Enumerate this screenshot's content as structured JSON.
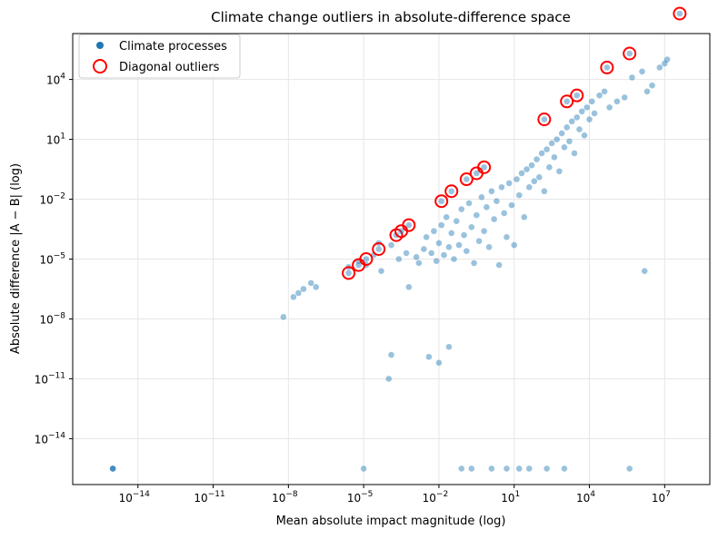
{
  "chart_data": {
    "type": "scatter",
    "title": "Climate change outliers in absolute-difference space",
    "xlabel": "Mean absolute impact magnitude (log)",
    "ylabel": "Absolute difference |A − B| (log)",
    "xscale": "log",
    "yscale": "log",
    "xlim_log10": [
      -16.6,
      8.8
    ],
    "ylim_log10": [
      -16.3,
      6.3
    ],
    "xticks": [
      {
        "base": "10",
        "exp": "−14",
        "value_log10": -14
      },
      {
        "base": "10",
        "exp": "−11",
        "value_log10": -11
      },
      {
        "base": "10",
        "exp": "−8",
        "value_log10": -8
      },
      {
        "base": "10",
        "exp": "−5",
        "value_log10": -5
      },
      {
        "base": "10",
        "exp": "−2",
        "value_log10": -2
      },
      {
        "base": "10",
        "exp": "1",
        "value_log10": 1
      },
      {
        "base": "10",
        "exp": "4",
        "value_log10": 4
      },
      {
        "base": "10",
        "exp": "7",
        "value_log10": 7
      }
    ],
    "yticks": [
      {
        "base": "10",
        "exp": "−14",
        "value_log10": -14
      },
      {
        "base": "10",
        "exp": "−11",
        "value_log10": -11
      },
      {
        "base": "10",
        "exp": "−8",
        "value_log10": -8
      },
      {
        "base": "10",
        "exp": "−5",
        "value_log10": -5
      },
      {
        "base": "10",
        "exp": "−2",
        "value_log10": -2
      },
      {
        "base": "10",
        "exp": "1",
        "value_log10": 1
      },
      {
        "base": "10",
        "exp": "4",
        "value_log10": 4
      }
    ],
    "grid": true,
    "legend_position": "top-left",
    "series": [
      {
        "name": "Climate processes",
        "color": "#1f77b4",
        "note": "values given as [log10(x), log10(y)]",
        "points": [
          [
            -15,
            -15.5
          ],
          [
            -15,
            -15.5
          ],
          [
            -15,
            -15.5
          ],
          [
            -8.2,
            -7.9
          ],
          [
            -7.8,
            -6.9
          ],
          [
            -7.6,
            -6.7
          ],
          [
            -7.4,
            -6.5
          ],
          [
            -7.1,
            -6.2
          ],
          [
            -6.9,
            -6.4
          ],
          [
            -5.6,
            -5.4
          ],
          [
            -5.2,
            -5.1
          ],
          [
            -4.9,
            -5.3
          ],
          [
            -4.6,
            -4.8
          ],
          [
            -4.4,
            -4.2
          ],
          [
            -4.3,
            -5.6
          ],
          [
            -3.9,
            -4.3
          ],
          [
            -3.6,
            -5.0
          ],
          [
            -3.3,
            -4.7
          ],
          [
            -3.2,
            -6.4
          ],
          [
            -2.9,
            -4.9
          ],
          [
            -2.8,
            -5.2
          ],
          [
            -2.6,
            -4.5
          ],
          [
            -2.5,
            -3.9
          ],
          [
            -2.3,
            -4.7
          ],
          [
            -2.2,
            -3.6
          ],
          [
            -2.1,
            -5.1
          ],
          [
            -2.0,
            -4.2
          ],
          [
            -1.9,
            -3.3
          ],
          [
            -1.8,
            -4.8
          ],
          [
            -1.7,
            -2.9
          ],
          [
            -1.6,
            -4.4
          ],
          [
            -1.5,
            -3.7
          ],
          [
            -1.4,
            -5.0
          ],
          [
            -1.3,
            -3.1
          ],
          [
            -1.2,
            -4.3
          ],
          [
            -1.1,
            -2.5
          ],
          [
            -1.0,
            -3.8
          ],
          [
            -0.9,
            -4.6
          ],
          [
            -0.8,
            -2.2
          ],
          [
            -0.7,
            -3.4
          ],
          [
            -0.6,
            -5.2
          ],
          [
            -0.5,
            -2.8
          ],
          [
            -0.4,
            -4.1
          ],
          [
            -0.3,
            -1.9
          ],
          [
            -0.2,
            -3.6
          ],
          [
            -0.1,
            -2.4
          ],
          [
            0.0,
            -4.4
          ],
          [
            0.1,
            -1.6
          ],
          [
            0.2,
            -3.0
          ],
          [
            0.3,
            -2.1
          ],
          [
            0.4,
            -5.3
          ],
          [
            0.5,
            -1.4
          ],
          [
            0.6,
            -2.7
          ],
          [
            0.7,
            -3.9
          ],
          [
            0.8,
            -1.2
          ],
          [
            0.9,
            -2.3
          ],
          [
            1.0,
            -4.3
          ],
          [
            1.1,
            -1.0
          ],
          [
            1.2,
            -1.8
          ],
          [
            1.3,
            -0.7
          ],
          [
            1.4,
            -2.9
          ],
          [
            1.5,
            -0.5
          ],
          [
            1.6,
            -1.4
          ],
          [
            1.7,
            -0.3
          ],
          [
            1.8,
            -1.1
          ],
          [
            1.9,
            0.0
          ],
          [
            2.0,
            -0.9
          ],
          [
            2.1,
            0.3
          ],
          [
            2.2,
            -1.6
          ],
          [
            2.3,
            0.5
          ],
          [
            2.4,
            -0.4
          ],
          [
            2.5,
            0.8
          ],
          [
            2.6,
            0.1
          ],
          [
            2.7,
            1.0
          ],
          [
            2.8,
            -0.6
          ],
          [
            2.9,
            1.3
          ],
          [
            3.0,
            0.6
          ],
          [
            3.1,
            1.6
          ],
          [
            3.2,
            0.9
          ],
          [
            3.3,
            1.9
          ],
          [
            3.4,
            0.3
          ],
          [
            3.5,
            2.1
          ],
          [
            3.6,
            1.5
          ],
          [
            3.7,
            2.4
          ],
          [
            3.8,
            1.2
          ],
          [
            3.9,
            2.6
          ],
          [
            4.0,
            2.0
          ],
          [
            4.1,
            2.9
          ],
          [
            4.2,
            2.3
          ],
          [
            4.4,
            3.2
          ],
          [
            4.6,
            3.4
          ],
          [
            4.8,
            2.6
          ],
          [
            5.1,
            2.9
          ],
          [
            5.4,
            3.1
          ],
          [
            5.7,
            4.1
          ],
          [
            6.1,
            4.4
          ],
          [
            6.3,
            3.4
          ],
          [
            6.5,
            3.7
          ],
          [
            6.8,
            4.6
          ],
          [
            7.0,
            4.8
          ],
          [
            7.1,
            5.0
          ],
          [
            6.2,
            -5.6
          ],
          [
            -4.0,
            -11.0
          ],
          [
            -3.9,
            -9.8
          ],
          [
            -2.4,
            -9.9
          ],
          [
            -2.0,
            -10.2
          ],
          [
            -1.6,
            -9.4
          ],
          [
            -5.0,
            -15.5
          ],
          [
            -1.1,
            -15.5
          ],
          [
            -0.7,
            -15.5
          ],
          [
            0.1,
            -15.5
          ],
          [
            0.7,
            -15.5
          ],
          [
            1.2,
            -15.5
          ],
          [
            1.6,
            -15.5
          ],
          [
            2.3,
            -15.5
          ],
          [
            3.0,
            -15.5
          ],
          [
            5.6,
            -15.5
          ]
        ]
      },
      {
        "name": "Diagonal outliers",
        "color": "#ff0000",
        "note": "values given as [log10(x), log10(y)]",
        "points": [
          [
            -5.6,
            -5.7
          ],
          [
            -5.2,
            -5.3
          ],
          [
            -4.9,
            -5.0
          ],
          [
            -4.4,
            -4.5
          ],
          [
            -3.7,
            -3.8
          ],
          [
            -3.5,
            -3.6
          ],
          [
            -3.2,
            -3.3
          ],
          [
            -1.9,
            -2.1
          ],
          [
            -1.5,
            -1.6
          ],
          [
            -0.9,
            -1.0
          ],
          [
            -0.5,
            -0.7
          ],
          [
            -0.2,
            -0.4
          ],
          [
            2.2,
            2.0
          ],
          [
            3.1,
            2.9
          ],
          [
            3.5,
            3.2
          ],
          [
            4.7,
            4.6
          ],
          [
            5.6,
            5.3
          ],
          [
            7.6,
            7.3
          ]
        ]
      }
    ]
  }
}
